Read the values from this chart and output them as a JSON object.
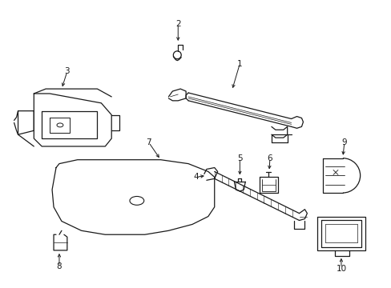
{
  "bg_color": "#ffffff",
  "line_color": "#1a1a1a",
  "fig_width": 4.89,
  "fig_height": 3.6,
  "dpi": 100,
  "label_fs": 7.5
}
